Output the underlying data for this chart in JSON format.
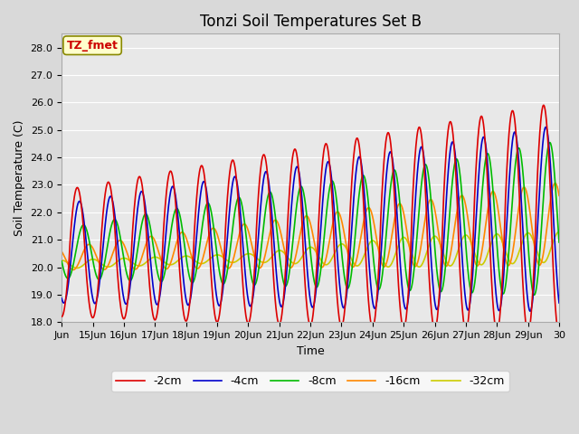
{
  "title": "Tonzi Soil Temperatures Set B",
  "xlabel": "Time",
  "ylabel": "Soil Temperature (C)",
  "ylim": [
    18.0,
    28.5
  ],
  "yticks": [
    18.0,
    19.0,
    20.0,
    21.0,
    22.0,
    23.0,
    24.0,
    25.0,
    26.0,
    27.0,
    28.0
  ],
  "xlim_start": 14.0,
  "xlim_end": 30.0,
  "xtick_positions": [
    14,
    15,
    16,
    17,
    18,
    19,
    20,
    21,
    22,
    23,
    24,
    25,
    26,
    27,
    28,
    29,
    30
  ],
  "xtick_labels": [
    "Jun",
    "15Jun",
    "16Jun",
    "17Jun",
    "18Jun",
    "19Jun",
    "20Jun",
    "21Jun",
    "22Jun",
    "23Jun",
    "24Jun",
    "25Jun",
    "26Jun",
    "27Jun",
    "28Jun",
    "29Jun",
    "30"
  ],
  "series_colors": [
    "#dd0000",
    "#0000cc",
    "#00bb00",
    "#ff8800",
    "#cccc00"
  ],
  "series_labels": [
    "-2cm",
    "-4cm",
    "-8cm",
    "-16cm",
    "-32cm"
  ],
  "legend_box_color": "#ffffcc",
  "annotation_text": "TZ_fmet",
  "annotation_color": "#cc0000",
  "annotation_bg": "#ffffcc",
  "annotation_edge": "#888800",
  "axes_bg_color": "#e8e8e8",
  "line_width": 1.2,
  "title_fontsize": 12,
  "axis_label_fontsize": 9,
  "tick_fontsize": 8
}
